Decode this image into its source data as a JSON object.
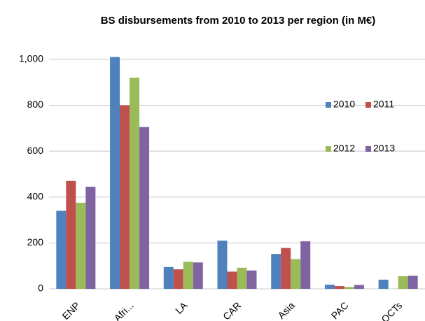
{
  "chart_data": {
    "type": "bar",
    "title": "BS disbursements from 2010 to 2013 per region (in M€)",
    "categories": [
      "ENP",
      "Afri...",
      "LA",
      "CAR",
      "Asia",
      "PAC",
      "OCTs"
    ],
    "series": [
      {
        "name": "2010",
        "color": "#4f81bd",
        "values": [
          340,
          1010,
          95,
          210,
          152,
          18,
          40
        ]
      },
      {
        "name": "2011",
        "color": "#c0504d",
        "values": [
          470,
          800,
          85,
          75,
          178,
          12,
          null
        ]
      },
      {
        "name": "2012",
        "color": "#9bbb59",
        "values": [
          375,
          920,
          118,
          92,
          130,
          8,
          55
        ]
      },
      {
        "name": "2013",
        "color": "#8064a2",
        "values": [
          445,
          705,
          115,
          80,
          207,
          17,
          57
        ]
      }
    ],
    "ylim": [
      0,
      1100
    ],
    "yticks": [
      0,
      200,
      400,
      600,
      800,
      {
        "value": 1000,
        "label": "1,000"
      }
    ],
    "grid": true
  }
}
